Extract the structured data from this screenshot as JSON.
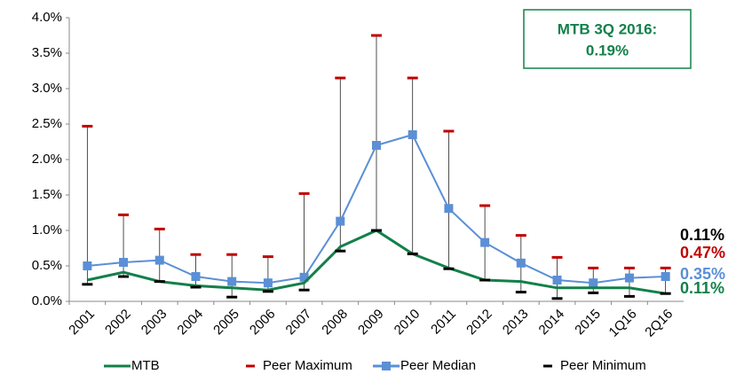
{
  "chart_data": {
    "type": "line",
    "categories": [
      "2001",
      "2002",
      "2003",
      "2004",
      "2005",
      "2006",
      "2007",
      "2008",
      "2009",
      "2010",
      "2011",
      "2012",
      "2013",
      "2014",
      "2015",
      "1Q16",
      "2Q16"
    ],
    "series": [
      {
        "name": "MTB",
        "color": "#13804a",
        "kind": "line",
        "values": [
          0.3,
          0.41,
          0.28,
          0.22,
          0.19,
          0.16,
          0.26,
          0.77,
          1.0,
          0.67,
          0.47,
          0.3,
          0.28,
          0.19,
          0.19,
          0.19,
          0.11
        ],
        "value_labels": [
          null,
          null,
          null,
          null,
          null,
          null,
          null,
          null,
          null,
          null,
          null,
          null,
          null,
          null,
          null,
          null,
          "0.11%"
        ]
      },
      {
        "name": "Peer Maximum",
        "color": "#c00000",
        "kind": "dash",
        "values": [
          2.47,
          1.22,
          1.02,
          0.66,
          0.66,
          0.63,
          1.52,
          3.15,
          3.75,
          3.15,
          2.4,
          1.35,
          0.93,
          0.62,
          0.47,
          0.47,
          0.47
        ],
        "value_labels": [
          null,
          null,
          null,
          null,
          null,
          null,
          null,
          null,
          null,
          null,
          null,
          null,
          null,
          null,
          null,
          null,
          "0.47%"
        ]
      },
      {
        "name": "Peer Median",
        "color": "#5b8fd6",
        "kind": "line-square",
        "values": [
          0.5,
          0.55,
          0.58,
          0.35,
          0.28,
          0.26,
          0.34,
          1.13,
          2.2,
          2.35,
          1.31,
          0.83,
          0.54,
          0.3,
          0.26,
          0.33,
          0.35
        ],
        "value_labels": [
          null,
          null,
          null,
          null,
          null,
          null,
          null,
          null,
          null,
          null,
          null,
          null,
          null,
          null,
          null,
          null,
          "0.35%"
        ]
      },
      {
        "name": "Peer Minimum",
        "color": "#000000",
        "kind": "dash",
        "values": [
          0.24,
          0.35,
          0.28,
          0.2,
          0.06,
          0.14,
          0.16,
          0.71,
          1.0,
          0.67,
          0.46,
          0.3,
          0.13,
          0.04,
          0.12,
          0.07,
          0.11
        ],
        "value_labels": [
          null,
          null,
          null,
          null,
          null,
          null,
          null,
          null,
          null,
          null,
          null,
          null,
          null,
          null,
          null,
          null,
          "0.11%"
        ]
      }
    ],
    "ylim": [
      0,
      4
    ],
    "yticks": [
      {
        "value": 0,
        "label": "0.0%"
      },
      {
        "value": 0.5,
        "label": "0.5%"
      },
      {
        "value": 1,
        "label": "1.0%"
      },
      {
        "value": 1.5,
        "label": "1.5%"
      },
      {
        "value": 2,
        "label": "2.0%"
      },
      {
        "value": 2.5,
        "label": "2.5%"
      },
      {
        "value": 3,
        "label": "3.0%"
      },
      {
        "value": 3.5,
        "label": "3.5%"
      },
      {
        "value": 4,
        "label": "4.0%"
      }
    ],
    "annotation": {
      "lines": [
        "MTB 3Q 2016:",
        "0.19%"
      ],
      "color": "#13804a"
    },
    "legend": "bottom"
  }
}
